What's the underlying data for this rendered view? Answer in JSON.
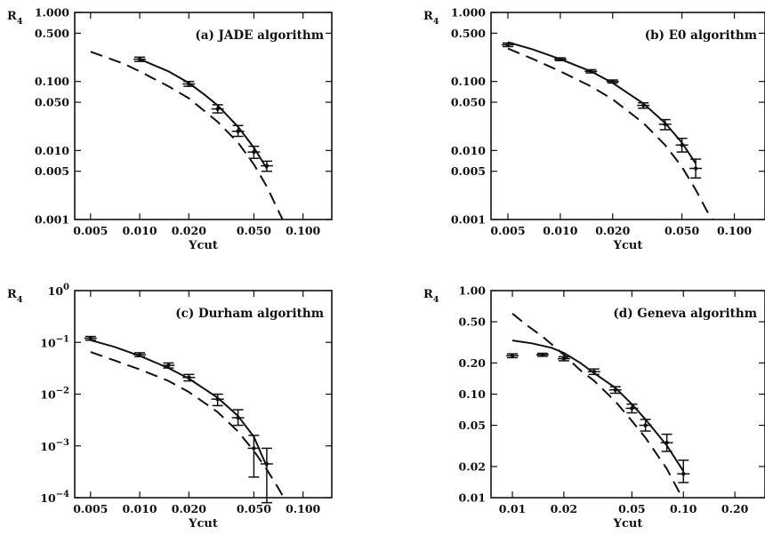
{
  "figure": {
    "chart_data": [
      {
        "type": "line",
        "title": "(a) JADE algorithm",
        "xlabel": "Ycut",
        "ylabel": "R",
        "ylabel_sub": "4",
        "x_scale": "log",
        "y_scale": "log",
        "xlim": [
          0.004,
          0.15
        ],
        "ylim": [
          0.001,
          1.0
        ],
        "x_ticks": [
          0.005,
          0.01,
          0.02,
          0.05,
          0.1
        ],
        "x_tick_labels": [
          "0.005",
          "0.010",
          "0.020",
          "0.050",
          "0.100"
        ],
        "y_ticks": [
          0.001,
          0.005,
          0.01,
          0.05,
          0.1,
          0.5,
          1.0
        ],
        "y_tick_labels": [
          "0.001",
          "0.005",
          "0.010",
          "0.050",
          "0.100",
          "0.500",
          "1.000"
        ],
        "data_points": [
          {
            "x": 0.01,
            "y": 0.21,
            "err_lo": 0.195,
            "err_hi": 0.225
          },
          {
            "x": 0.02,
            "y": 0.092,
            "err_lo": 0.085,
            "err_hi": 0.1
          },
          {
            "x": 0.03,
            "y": 0.04,
            "err_lo": 0.035,
            "err_hi": 0.046
          },
          {
            "x": 0.04,
            "y": 0.019,
            "err_lo": 0.016,
            "err_hi": 0.023
          },
          {
            "x": 0.05,
            "y": 0.0095,
            "err_lo": 0.0077,
            "err_hi": 0.0115
          },
          {
            "x": 0.06,
            "y": 0.006,
            "err_lo": 0.005,
            "err_hi": 0.007
          }
        ],
        "series": [
          {
            "style": "solid",
            "x": [
              0.01,
              0.015,
              0.02,
              0.025,
              0.03,
              0.04,
              0.05,
              0.06
            ],
            "y": [
              0.21,
              0.14,
              0.095,
              0.064,
              0.045,
              0.022,
              0.011,
              0.0055
            ]
          },
          {
            "style": "dashed",
            "x": [
              0.005,
              0.008,
              0.01,
              0.015,
              0.02,
              0.03,
              0.04,
              0.05,
              0.06,
              0.07,
              0.075
            ],
            "y": [
              0.27,
              0.18,
              0.14,
              0.085,
              0.057,
              0.026,
              0.013,
              0.0063,
              0.003,
              0.0014,
              0.001
            ]
          }
        ]
      },
      {
        "type": "line",
        "title": "(b) E0 algorithm",
        "xlabel": "Ycut",
        "ylabel": "R",
        "ylabel_sub": "4",
        "x_scale": "log",
        "y_scale": "log",
        "xlim": [
          0.004,
          0.15
        ],
        "ylim": [
          0.001,
          1.0
        ],
        "x_ticks": [
          0.005,
          0.01,
          0.02,
          0.05,
          0.1
        ],
        "x_tick_labels": [
          "0.005",
          "0.010",
          "0.020",
          "0.050",
          "0.100"
        ],
        "y_ticks": [
          0.001,
          0.005,
          0.01,
          0.05,
          0.1,
          0.5,
          1.0
        ],
        "y_tick_labels": [
          "0.001",
          "0.005",
          "0.010",
          "0.050",
          "0.100",
          "0.500",
          "1.000"
        ],
        "data_points": [
          {
            "x": 0.005,
            "y": 0.34,
            "err_lo": 0.32,
            "err_hi": 0.36
          },
          {
            "x": 0.01,
            "y": 0.21,
            "err_lo": 0.2,
            "err_hi": 0.22
          },
          {
            "x": 0.015,
            "y": 0.14,
            "err_lo": 0.133,
            "err_hi": 0.148
          },
          {
            "x": 0.02,
            "y": 0.1,
            "err_lo": 0.095,
            "err_hi": 0.105
          },
          {
            "x": 0.03,
            "y": 0.045,
            "err_lo": 0.041,
            "err_hi": 0.049
          },
          {
            "x": 0.04,
            "y": 0.024,
            "err_lo": 0.02,
            "err_hi": 0.028
          },
          {
            "x": 0.05,
            "y": 0.012,
            "err_lo": 0.0095,
            "err_hi": 0.015
          },
          {
            "x": 0.06,
            "y": 0.0055,
            "err_lo": 0.004,
            "err_hi": 0.0075
          }
        ],
        "series": [
          {
            "style": "solid",
            "x": [
              0.005,
              0.007,
              0.01,
              0.015,
              0.02,
              0.03,
              0.04,
              0.05,
              0.06
            ],
            "y": [
              0.37,
              0.29,
              0.21,
              0.14,
              0.095,
              0.048,
              0.025,
              0.013,
              0.0065
            ]
          },
          {
            "style": "dashed",
            "x": [
              0.005,
              0.007,
              0.01,
              0.015,
              0.02,
              0.03,
              0.04,
              0.05,
              0.06,
              0.07,
              0.075
            ],
            "y": [
              0.3,
              0.21,
              0.14,
              0.085,
              0.055,
              0.025,
              0.012,
              0.0058,
              0.0027,
              0.0013,
              0.001
            ]
          }
        ]
      },
      {
        "type": "line",
        "title": "(c) Durham algorithm",
        "xlabel": "Ycut",
        "ylabel": "R",
        "ylabel_sub": "4",
        "x_scale": "log",
        "y_scale": "log",
        "xlim": [
          0.004,
          0.15
        ],
        "ylim": [
          0.0001,
          1.0
        ],
        "x_ticks": [
          0.005,
          0.01,
          0.02,
          0.05,
          0.1
        ],
        "x_tick_labels": [
          "0.005",
          "0.010",
          "0.020",
          "0.050",
          "0.100"
        ],
        "y_ticks": [
          0.0001,
          0.001,
          0.01,
          0.1,
          1.0
        ],
        "y_tick_base": [
          "10",
          "10",
          "10",
          "10",
          "10"
        ],
        "y_tick_exp": [
          "−4",
          "−3",
          "−2",
          "−1",
          "0"
        ],
        "data_points": [
          {
            "x": 0.005,
            "y": 0.12,
            "err_lo": 0.11,
            "err_hi": 0.13
          },
          {
            "x": 0.01,
            "y": 0.058,
            "err_lo": 0.053,
            "err_hi": 0.063
          },
          {
            "x": 0.015,
            "y": 0.036,
            "err_lo": 0.032,
            "err_hi": 0.04
          },
          {
            "x": 0.02,
            "y": 0.021,
            "err_lo": 0.018,
            "err_hi": 0.024
          },
          {
            "x": 0.03,
            "y": 0.008,
            "err_lo": 0.006,
            "err_hi": 0.01
          },
          {
            "x": 0.04,
            "y": 0.0035,
            "err_lo": 0.0025,
            "err_hi": 0.005
          },
          {
            "x": 0.05,
            "y": 0.0009,
            "err_lo": 0.00025,
            "err_hi": 0.0016
          },
          {
            "x": 0.06,
            "y": 0.00045,
            "err_lo": 8e-05,
            "err_hi": 0.0009
          }
        ],
        "series": [
          {
            "style": "solid",
            "x": [
              0.005,
              0.007,
              0.01,
              0.015,
              0.02,
              0.03,
              0.04,
              0.05,
              0.06
            ],
            "y": [
              0.11,
              0.082,
              0.055,
              0.032,
              0.02,
              0.0085,
              0.0038,
              0.0015,
              0.0004
            ]
          },
          {
            "style": "dashed",
            "x": [
              0.005,
              0.007,
              0.01,
              0.015,
              0.02,
              0.03,
              0.04,
              0.05,
              0.06,
              0.07,
              0.075
            ],
            "y": [
              0.065,
              0.045,
              0.03,
              0.018,
              0.011,
              0.0045,
              0.0019,
              0.0008,
              0.00035,
              0.00016,
              0.00011
            ]
          }
        ]
      },
      {
        "type": "line",
        "title": "(d) Geneva algorithm",
        "xlabel": "Ycut",
        "ylabel": "R",
        "ylabel_sub": "4",
        "x_scale": "log",
        "y_scale": "log",
        "xlim": [
          0.0075,
          0.3
        ],
        "ylim": [
          0.01,
          1.0
        ],
        "x_ticks": [
          0.01,
          0.02,
          0.05,
          0.1,
          0.2
        ],
        "x_tick_labels": [
          "0.01",
          "0.02",
          "0.05",
          "0.10",
          "0.20"
        ],
        "y_ticks": [
          0.01,
          0.02,
          0.05,
          0.1,
          0.2,
          0.5,
          1.0
        ],
        "y_tick_labels": [
          "0.01",
          "0.02",
          "0.05",
          "0.10",
          "0.20",
          "0.50",
          "1.00"
        ],
        "data_points": [
          {
            "x": 0.01,
            "y": 0.235,
            "err_lo": 0.225,
            "err_hi": 0.245
          },
          {
            "x": 0.015,
            "y": 0.24,
            "err_lo": 0.232,
            "err_hi": 0.248
          },
          {
            "x": 0.02,
            "y": 0.22,
            "err_lo": 0.21,
            "err_hi": 0.23
          },
          {
            "x": 0.03,
            "y": 0.165,
            "err_lo": 0.155,
            "err_hi": 0.175
          },
          {
            "x": 0.04,
            "y": 0.11,
            "err_lo": 0.102,
            "err_hi": 0.118
          },
          {
            "x": 0.05,
            "y": 0.073,
            "err_lo": 0.066,
            "err_hi": 0.08
          },
          {
            "x": 0.06,
            "y": 0.05,
            "err_lo": 0.044,
            "err_hi": 0.057
          },
          {
            "x": 0.08,
            "y": 0.034,
            "err_lo": 0.028,
            "err_hi": 0.041
          },
          {
            "x": 0.1,
            "y": 0.017,
            "err_lo": 0.014,
            "err_hi": 0.023
          }
        ],
        "series": [
          {
            "style": "solid",
            "x": [
              0.01,
              0.013,
              0.017,
              0.02,
              0.025,
              0.03,
              0.04,
              0.05,
              0.06,
              0.08,
              0.1
            ],
            "y": [
              0.33,
              0.31,
              0.28,
              0.25,
              0.2,
              0.16,
              0.115,
              0.08,
              0.057,
              0.032,
              0.018
            ]
          },
          {
            "style": "dashed",
            "x": [
              0.01,
              0.012,
              0.015,
              0.02,
              0.025,
              0.03,
              0.04,
              0.05,
              0.06,
              0.08,
              0.1
            ],
            "y": [
              0.6,
              0.47,
              0.36,
              0.24,
              0.17,
              0.135,
              0.085,
              0.055,
              0.038,
              0.019,
              0.0095
            ]
          }
        ]
      }
    ]
  }
}
